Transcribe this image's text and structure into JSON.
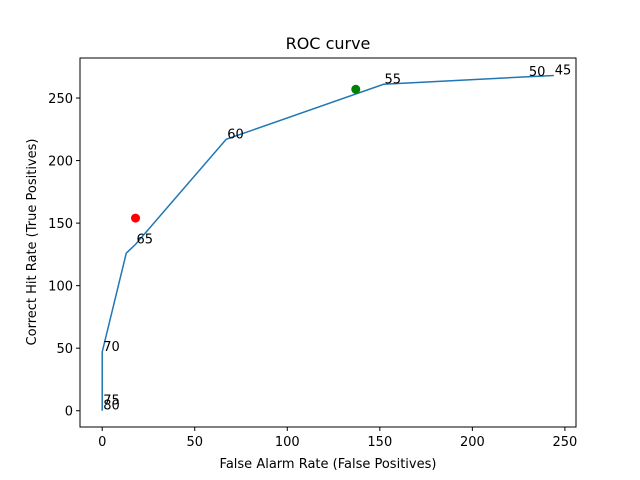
{
  "chart_data": {
    "type": "line",
    "title": "ROC curve",
    "xlabel": "False Alarm Rate (False Positives)",
    "ylabel": "Correct Hit Rate (True Positives)",
    "xlim": [
      -12,
      256
    ],
    "ylim": [
      -13,
      282
    ],
    "grid": false,
    "x_ticks": [
      0,
      50,
      100,
      150,
      200,
      250
    ],
    "y_ticks": [
      0,
      50,
      100,
      150,
      200,
      250
    ],
    "series": [
      {
        "color": "#1f77b4",
        "points": [
          {
            "x": 0,
            "y": 0,
            "label": "80"
          },
          {
            "x": 0,
            "y": 4,
            "label": "75"
          },
          {
            "x": 0,
            "y": 47,
            "label": "70"
          },
          {
            "x": 13,
            "y": 126,
            "label": ""
          },
          {
            "x": 18,
            "y": 133,
            "label": "65"
          },
          {
            "x": 67,
            "y": 217,
            "label": "60"
          },
          {
            "x": 152,
            "y": 261,
            "label": "55"
          },
          {
            "x": 230,
            "y": 267,
            "label": "50"
          },
          {
            "x": 244,
            "y": 268,
            "label": "45"
          }
        ]
      }
    ],
    "markers": [
      {
        "x": 18,
        "y": 154,
        "color": "#ff0000"
      },
      {
        "x": 137,
        "y": 257,
        "color": "#008000"
      }
    ]
  }
}
